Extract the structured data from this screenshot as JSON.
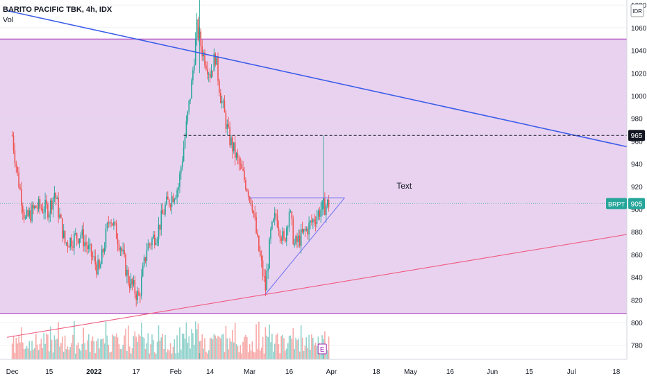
{
  "header": {
    "title": "BARITO PACIFIC TBK, 4h, IDX",
    "volume_label": "Vol"
  },
  "currency_badge": "IDR",
  "symbol_badge": "BRPT",
  "last_price_label": "905",
  "hline_price_label": "965",
  "annotation_text": "Text",
  "earnings_marker": "E",
  "colors": {
    "up": "#26a69a",
    "down": "#ef5350",
    "zone_fill": "#e9d2f0",
    "zone_border": "#9c27b0",
    "resistance": "#3d5ee8",
    "support": "#f05a7e",
    "triangle": "#6f6ff0",
    "price_badge": "#26a69a"
  },
  "chart_data": {
    "type": "candlestick",
    "interval": "4h",
    "y_axis": {
      "min": 765,
      "max": 1090,
      "ticks": [
        780,
        800,
        820,
        840,
        860,
        880,
        900,
        920,
        940,
        960,
        980,
        1000,
        1020,
        1040,
        1060,
        1080
      ],
      "tick_labels": [
        "780",
        "800",
        "820",
        "840",
        "860",
        "880",
        "900",
        "920",
        "940",
        "960",
        "980",
        "1000",
        "1020",
        "1040",
        "1060",
        "1080"
      ]
    },
    "x_axis": {
      "labels": [
        "Dec",
        "15",
        "2022",
        "17",
        "Feb",
        "14",
        "Mar",
        "16",
        "Apr",
        "18",
        "May",
        "16",
        "Jun",
        "15",
        "Jul",
        "18"
      ],
      "bold_labels": [
        "2022"
      ]
    },
    "price_path": [
      {
        "t": "2021-12-01",
        "price": 965
      },
      {
        "t": "2021-12-03",
        "price": 930
      },
      {
        "t": "2021-12-06",
        "price": 890
      },
      {
        "t": "2021-12-10",
        "price": 902
      },
      {
        "t": "2021-12-15",
        "price": 900
      },
      {
        "t": "2021-12-17",
        "price": 915
      },
      {
        "t": "2021-12-21",
        "price": 870
      },
      {
        "t": "2021-12-27",
        "price": 878
      },
      {
        "t": "2022-01-03",
        "price": 845
      },
      {
        "t": "2022-01-07",
        "price": 895
      },
      {
        "t": "2022-01-11",
        "price": 868
      },
      {
        "t": "2022-01-14",
        "price": 838
      },
      {
        "t": "2022-01-18",
        "price": 822
      },
      {
        "t": "2022-01-21",
        "price": 866
      },
      {
        "t": "2022-01-25",
        "price": 880
      },
      {
        "t": "2022-01-28",
        "price": 902
      },
      {
        "t": "2022-02-02",
        "price": 920
      },
      {
        "t": "2022-02-04",
        "price": 955
      },
      {
        "t": "2022-02-07",
        "price": 1010
      },
      {
        "t": "2022-02-09",
        "price": 1060
      },
      {
        "t": "2022-02-11",
        "price": 1040
      },
      {
        "t": "2022-02-14",
        "price": 1020
      },
      {
        "t": "2022-02-16",
        "price": 1035
      },
      {
        "t": "2022-02-18",
        "price": 1000
      },
      {
        "t": "2022-02-21",
        "price": 965
      },
      {
        "t": "2022-02-24",
        "price": 945
      },
      {
        "t": "2022-02-28",
        "price": 920
      },
      {
        "t": "2022-03-02",
        "price": 905
      },
      {
        "t": "2022-03-04",
        "price": 870
      },
      {
        "t": "2022-03-07",
        "price": 830
      },
      {
        "t": "2022-03-09",
        "price": 878
      },
      {
        "t": "2022-03-11",
        "price": 895
      },
      {
        "t": "2022-03-14",
        "price": 870
      },
      {
        "t": "2022-03-16",
        "price": 900
      },
      {
        "t": "2022-03-18",
        "price": 868
      },
      {
        "t": "2022-03-22",
        "price": 880
      },
      {
        "t": "2022-03-25",
        "price": 890
      },
      {
        "t": "2022-03-28",
        "price": 900
      },
      {
        "t": "2022-03-31",
        "price": 905
      }
    ],
    "peak": {
      "t": "2022-02-10",
      "high": 1085,
      "low": 1020
    },
    "horizontal_levels": [
      965
    ],
    "zone": {
      "top": 1050,
      "bottom": 808
    },
    "trendlines": [
      {
        "name": "resistance",
        "points": [
          {
            "t": "2021-11-29",
            "price": 1075
          },
          {
            "t": "2022-07-28",
            "price": 952
          }
        ]
      },
      {
        "name": "support",
        "points": [
          {
            "t": "2021-11-29",
            "price": 787
          },
          {
            "t": "2022-07-28",
            "price": 880
          }
        ]
      }
    ],
    "triangle": {
      "top": 910,
      "apex": {
        "t": "2022-04-06",
        "price": 910
      },
      "base": {
        "t": "2022-03-07",
        "price": 825
      },
      "flat_start": "2022-03-01"
    },
    "last_price": 905,
    "volume": "shown"
  }
}
